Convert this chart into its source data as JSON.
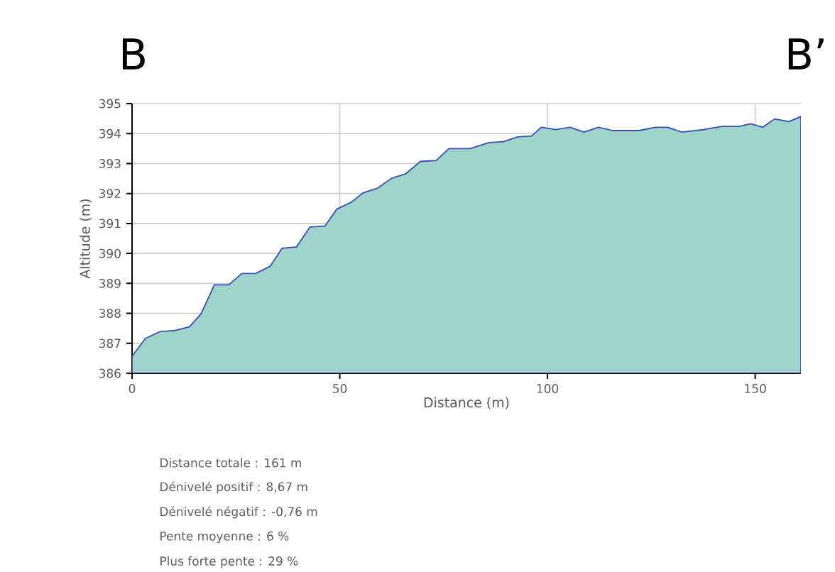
{
  "chart_data": {
    "type": "area",
    "xlabel": "Distance (m)",
    "ylabel": "Altitude (m)",
    "x": [
      0,
      3.2,
      6.7,
      10.3,
      13.8,
      16.6,
      19.8,
      23.3,
      26.4,
      29.8,
      33.3,
      36.1,
      39.6,
      42.8,
      46.4,
      49.3,
      52.8,
      55.6,
      59.1,
      62.5,
      65.9,
      69.4,
      73.2,
      76.3,
      81.4,
      85.9,
      89.4,
      92.8,
      96.2,
      98.5,
      102.0,
      105.4,
      108.8,
      112.3,
      115.7,
      122.0,
      126.0,
      128.9,
      132.3,
      137.5,
      142.0,
      146.1,
      148.9,
      151.8,
      154.7,
      158.1,
      161
    ],
    "series": [
      {
        "color": "#9fd5c9",
        "values": [
          386.57,
          387.16,
          387.39,
          387.43,
          387.55,
          387.98,
          388.95,
          388.95,
          389.33,
          389.33,
          389.58,
          390.17,
          390.22,
          390.88,
          390.91,
          391.48,
          391.71,
          392.02,
          392.18,
          392.51,
          392.66,
          393.07,
          393.1,
          393.5,
          393.5,
          393.7,
          393.73,
          393.89,
          393.92,
          394.21,
          394.13,
          394.21,
          394.05,
          394.21,
          394.1,
          394.1,
          394.21,
          394.21,
          394.05,
          394.13,
          394.24,
          394.24,
          394.33,
          394.21,
          394.49,
          394.4,
          394.57
        ]
      }
    ],
    "xlim": [
      0,
      161
    ],
    "xticks": [
      0,
      50,
      100,
      150
    ],
    "ylim": [
      386,
      395
    ],
    "yticks": [
      386,
      387,
      388,
      389,
      390,
      391,
      392,
      393,
      394,
      395
    ],
    "grid": true,
    "marker": "none",
    "annotations": [
      "B",
      "B’",
      "Distance totale : 161 m",
      "Dénivelé positif : 8,67 m",
      "Dénivelé négatif : -0,76 m",
      "Pente moyenne : 6 %",
      "Plus forte pente : 29 %"
    ]
  }
}
